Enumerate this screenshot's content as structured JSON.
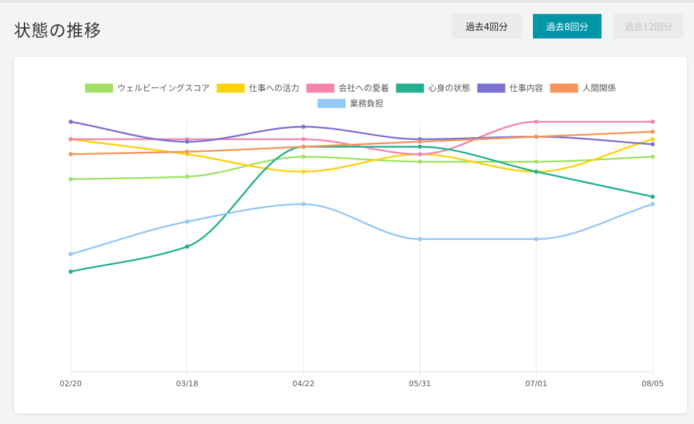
{
  "page": {
    "title": "状態の推移"
  },
  "range_buttons": [
    {
      "label": "過去4回分",
      "state": "default"
    },
    {
      "label": "過去8回分",
      "state": "active"
    },
    {
      "label": "過去12回分",
      "state": "disabled"
    }
  ],
  "chart_data": {
    "type": "line",
    "categories": [
      "02/20",
      "03/18",
      "04/22",
      "05/31",
      "07/01",
      "08/05"
    ],
    "ylim": [
      0,
      100
    ],
    "grid": {
      "vertical": true,
      "horizontal": false
    },
    "legend_position": "top-center",
    "series": [
      {
        "name": "ウェルビーイングスコア",
        "color": "#a1e064",
        "values": [
          77,
          78,
          86,
          84,
          84,
          86
        ]
      },
      {
        "name": "仕事への活力",
        "color": "#fcd20a",
        "values": [
          93,
          87,
          80,
          87,
          80,
          93
        ]
      },
      {
        "name": "会社への愛着",
        "color": "#f584ac",
        "values": [
          93,
          93,
          93,
          87,
          100,
          100
        ]
      },
      {
        "name": "心身の状態",
        "color": "#22b08e",
        "values": [
          40,
          50,
          90,
          90,
          80,
          70
        ]
      },
      {
        "name": "仕事内容",
        "color": "#7b72d3",
        "values": [
          100,
          92,
          98,
          93,
          94,
          91
        ]
      },
      {
        "name": "人間関係",
        "color": "#f69459",
        "values": [
          87,
          88,
          90,
          92,
          94,
          96
        ]
      },
      {
        "name": "業務負担",
        "color": "#94c8f6",
        "values": [
          47,
          60,
          67,
          53,
          53,
          67
        ]
      }
    ]
  }
}
